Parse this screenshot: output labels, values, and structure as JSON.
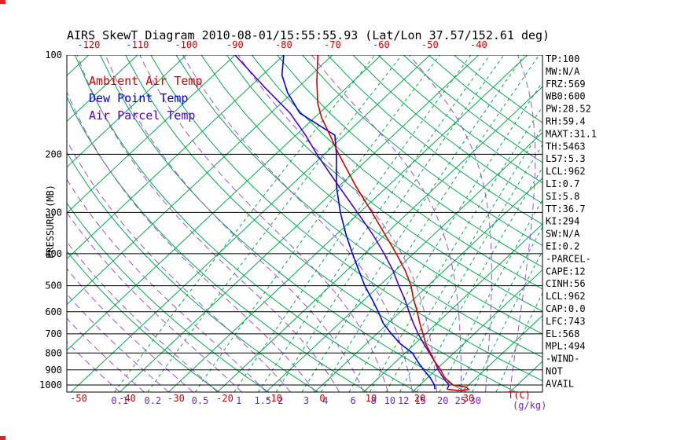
{
  "colors": {
    "grid_green": "#00ab4e",
    "pressure_black": "#000000",
    "tick_red": "#d40000",
    "mix_label_purple": "#7a1fd0",
    "moist_purple": "#a050d8"
  },
  "stats_panel": {
    "lines": [
      "TP:100",
      "MW:N/A",
      "FRZ:569",
      "WB0:600",
      "PW:28.52",
      "RH:59.4",
      "MAXT:31.1",
      "TH:5463",
      "L57:5.3",
      "LCL:962",
      "LI:0.7",
      "SI:5.8",
      "TT:36.7",
      "KI:294",
      "SW:N/A",
      "EI:0.2",
      "-PARCEL-",
      "CAPE:12",
      "CINH:56",
      "LCL:962",
      "CAP:0.0",
      "LFC:743",
      "EL:568",
      "MPL:494",
      "-WIND-",
      "NOT",
      "AVAIL"
    ]
  },
  "chart_data": {
    "type": "line",
    "variant": "skew-t-log-p",
    "title": "AIRS SkewT Diagram 2010-08-01/15:55:55.93 (Lat/Lon 37.57/152.61 deg)",
    "y_axis": {
      "label": "PRESSURE (MB)",
      "scale": "log",
      "ticks": [
        100,
        200,
        300,
        400,
        500,
        600,
        700,
        800,
        900,
        1000
      ]
    },
    "top_axis": {
      "ticks": [
        -120,
        -110,
        -100,
        -90,
        -80,
        -70,
        -60,
        -50,
        -40
      ]
    },
    "bottom_axis": {
      "label": "T(C)",
      "ticks": [
        -50,
        -40,
        -30,
        -20,
        -10,
        0,
        10,
        20,
        30
      ]
    },
    "mixing_ratio_axis": {
      "label": "(g/kg)",
      "values": [
        0.1,
        0.2,
        0.5,
        1,
        1.5,
        2,
        3,
        4,
        6,
        8,
        10,
        12,
        15,
        20,
        25,
        30
      ]
    },
    "grid": {
      "isotherm_min": -120,
      "isotherm_max": 40,
      "isotherm_step": 10,
      "dry_adiabat_min_K": 250,
      "dry_adiabat_max_K": 440,
      "dry_adiabat_step_K": 10,
      "moist_adiabat_min_C": -40,
      "moist_adiabat_max_C": 40,
      "moist_adiabat_step_C": 5,
      "mixing_line_extra": [
        40
      ]
    },
    "series": [
      {
        "name": "Ambient Air Temp",
        "color": "#d40000",
        "points": [
          [
            1030,
            26.5
          ],
          [
            1040,
            29.5
          ],
          [
            1032,
            31
          ],
          [
            1015,
            30
          ],
          [
            1003,
            27.5
          ],
          [
            1000,
            26.8
          ],
          [
            950,
            23.5
          ],
          [
            900,
            21
          ],
          [
            850,
            18
          ],
          [
            800,
            15.2
          ],
          [
            750,
            12.2
          ],
          [
            700,
            9.5
          ],
          [
            650,
            6.5
          ],
          [
            600,
            3.5
          ],
          [
            550,
            0
          ],
          [
            500,
            -3.5
          ],
          [
            450,
            -8
          ],
          [
            400,
            -13.5
          ],
          [
            350,
            -20
          ],
          [
            300,
            -27.5
          ],
          [
            250,
            -36.5
          ],
          [
            200,
            -47
          ],
          [
            175,
            -53
          ],
          [
            155,
            -58.5
          ],
          [
            140,
            -62.5
          ],
          [
            120,
            -67.5
          ],
          [
            100,
            -73
          ]
        ]
      },
      {
        "name": "Dew Point Temp",
        "color": "#0000e0",
        "points": [
          [
            1030,
            24
          ],
          [
            1000,
            23
          ],
          [
            950,
            20.5
          ],
          [
            900,
            17.5
          ],
          [
            850,
            14.5
          ],
          [
            800,
            11.5
          ],
          [
            750,
            7
          ],
          [
            700,
            3
          ],
          [
            650,
            -1
          ],
          [
            600,
            -4.5
          ],
          [
            550,
            -8.5
          ],
          [
            500,
            -13
          ],
          [
            450,
            -17.5
          ],
          [
            400,
            -22.5
          ],
          [
            350,
            -28
          ],
          [
            300,
            -34
          ],
          [
            250,
            -40.5
          ],
          [
            200,
            -47.5
          ],
          [
            175,
            -52
          ],
          [
            150,
            -64
          ],
          [
            130,
            -71
          ],
          [
            115,
            -76
          ],
          [
            100,
            -80
          ]
        ]
      },
      {
        "name": "Air Parcel Temp",
        "color": "#5000c0",
        "points": [
          [
            1030,
            26.5
          ],
          [
            1000,
            26
          ],
          [
            962,
            23.8
          ],
          [
            900,
            20.5
          ],
          [
            850,
            18
          ],
          [
            800,
            15
          ],
          [
            750,
            11.8
          ],
          [
            700,
            8.5
          ],
          [
            650,
            5.2
          ],
          [
            600,
            1.8
          ],
          [
            550,
            -1.8
          ],
          [
            500,
            -6
          ],
          [
            450,
            -10.5
          ],
          [
            400,
            -16
          ],
          [
            350,
            -22.5
          ],
          [
            300,
            -30.5
          ],
          [
            250,
            -40
          ],
          [
            200,
            -51.5
          ],
          [
            175,
            -58
          ],
          [
            150,
            -66
          ],
          [
            125,
            -77
          ],
          [
            100,
            -90
          ]
        ]
      }
    ]
  }
}
